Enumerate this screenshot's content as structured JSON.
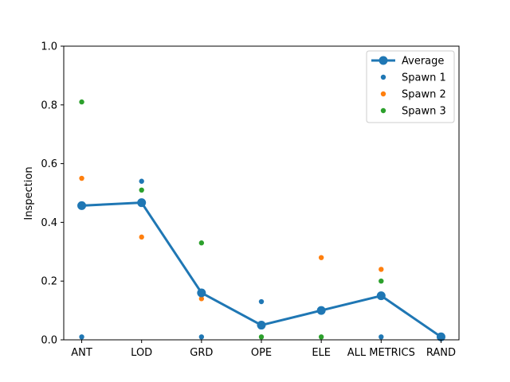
{
  "chart_data": {
    "type": "line",
    "title": "",
    "xlabel": "",
    "ylabel": "Inspection",
    "ylim": [
      0,
      1
    ],
    "yticks": [
      "0.0",
      "0.2",
      "0.4",
      "0.6",
      "0.8",
      "1.0"
    ],
    "categories": [
      "ANT",
      "LOD",
      "GRD",
      "OPE",
      "ELE",
      "ALL METRICS",
      "RAND"
    ],
    "grid": false,
    "legend_position": "top-right",
    "series": [
      {
        "name": "Average",
        "kind": "line",
        "color": "#1f77b4",
        "values": [
          0.457,
          0.467,
          0.16,
          0.05,
          0.1,
          0.15,
          0.01
        ]
      },
      {
        "name": "Spawn 1",
        "kind": "scatter",
        "color": "#1f77b4",
        "values": [
          0.01,
          0.54,
          0.01,
          0.13,
          null,
          0.01,
          null
        ]
      },
      {
        "name": "Spawn 2",
        "kind": "scatter",
        "color": "#ff7f0e",
        "values": [
          0.55,
          0.35,
          0.14,
          null,
          0.28,
          0.24,
          null
        ]
      },
      {
        "name": "Spawn 3",
        "kind": "scatter",
        "color": "#2ca02c",
        "values": [
          0.81,
          0.51,
          0.33,
          0.01,
          0.01,
          0.2,
          null
        ]
      }
    ]
  }
}
